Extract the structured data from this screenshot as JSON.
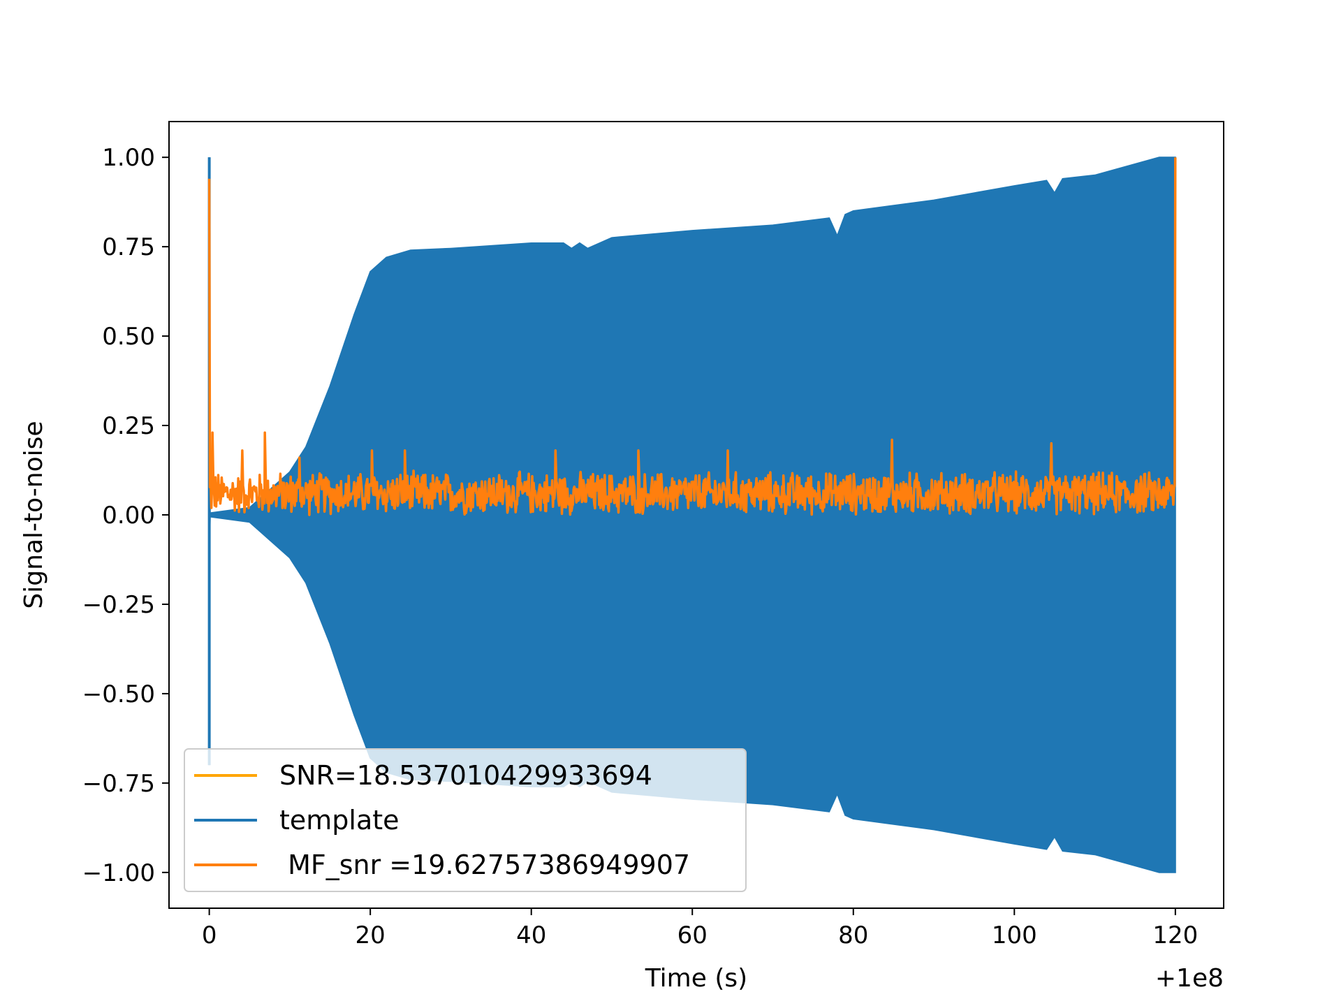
{
  "chart_data": {
    "type": "line",
    "title": "",
    "xlabel": "Time (s)",
    "ylabel": "Signal-to-noise",
    "x_offset_label": "+1e8",
    "xlim": [
      -5,
      126
    ],
    "ylim": [
      -1.1,
      1.1
    ],
    "x_ticks": [
      0,
      20,
      40,
      60,
      80,
      100,
      120
    ],
    "x_tick_labels": [
      "0",
      "20",
      "40",
      "60",
      "80",
      "100",
      "120"
    ],
    "y_ticks": [
      1.0,
      0.75,
      0.5,
      0.25,
      0.0,
      -0.25,
      -0.5,
      -0.75,
      -1.0
    ],
    "y_tick_labels": [
      "1.00",
      "0.75",
      "0.50",
      "0.25",
      "0.00",
      "−0.25",
      "−0.50",
      "−0.75",
      "−1.00"
    ],
    "grid": false,
    "legend_position": "lower-left",
    "series": [
      {
        "name": "SNR=18.537010429933694",
        "color": "#ffa500",
        "style": "line",
        "x": [],
        "y": []
      },
      {
        "name": "template",
        "color": "#1f77b4",
        "style": "envelope",
        "x": [
          0,
          0.05,
          0.1,
          5,
          10,
          12,
          15,
          18,
          20,
          22,
          25,
          30,
          40,
          44,
          45,
          46,
          47,
          50,
          60,
          70,
          77,
          78,
          79,
          80,
          90,
          100,
          104,
          105,
          106,
          110,
          118,
          120
        ],
        "upper": [
          1.0,
          0.05,
          0.005,
          0.02,
          0.12,
          0.19,
          0.36,
          0.56,
          0.68,
          0.72,
          0.74,
          0.745,
          0.76,
          0.76,
          0.745,
          0.76,
          0.745,
          0.775,
          0.795,
          0.81,
          0.83,
          0.78,
          0.84,
          0.85,
          0.88,
          0.92,
          0.935,
          0.9,
          0.94,
          0.95,
          1.0,
          1.0
        ],
        "lower": [
          -0.7,
          -0.05,
          -0.005,
          -0.02,
          -0.12,
          -0.19,
          -0.36,
          -0.56,
          -0.68,
          -0.72,
          -0.74,
          -0.745,
          -0.76,
          -0.76,
          -0.745,
          -0.76,
          -0.745,
          -0.775,
          -0.795,
          -0.81,
          -0.83,
          -0.78,
          -0.84,
          -0.85,
          -0.88,
          -0.92,
          -0.935,
          -0.9,
          -0.94,
          -0.95,
          -1.0,
          -1.0
        ]
      },
      {
        "name": " MF_snr =19.62757386949907",
        "color": "#ff7f0e",
        "style": "noise",
        "x_start": 0,
        "x_end": 120,
        "peaks": [
          {
            "x": 0.0,
            "y": 0.94
          },
          {
            "x": 0.4,
            "y": 0.23
          },
          {
            "x": 4.1,
            "y": 0.18
          },
          {
            "x": 6.9,
            "y": 0.23
          },
          {
            "x": 11.2,
            "y": 0.16
          },
          {
            "x": 20.2,
            "y": 0.18
          },
          {
            "x": 24.3,
            "y": 0.18
          },
          {
            "x": 43.0,
            "y": 0.18
          },
          {
            "x": 53.3,
            "y": 0.18
          },
          {
            "x": 64.4,
            "y": 0.18
          },
          {
            "x": 84.8,
            "y": 0.21
          },
          {
            "x": 104.6,
            "y": 0.2
          },
          {
            "x": 120.0,
            "y": 1.0
          }
        ],
        "baseline_mean": 0.06,
        "baseline_spread": 0.06,
        "y_min": 0.0
      }
    ]
  }
}
